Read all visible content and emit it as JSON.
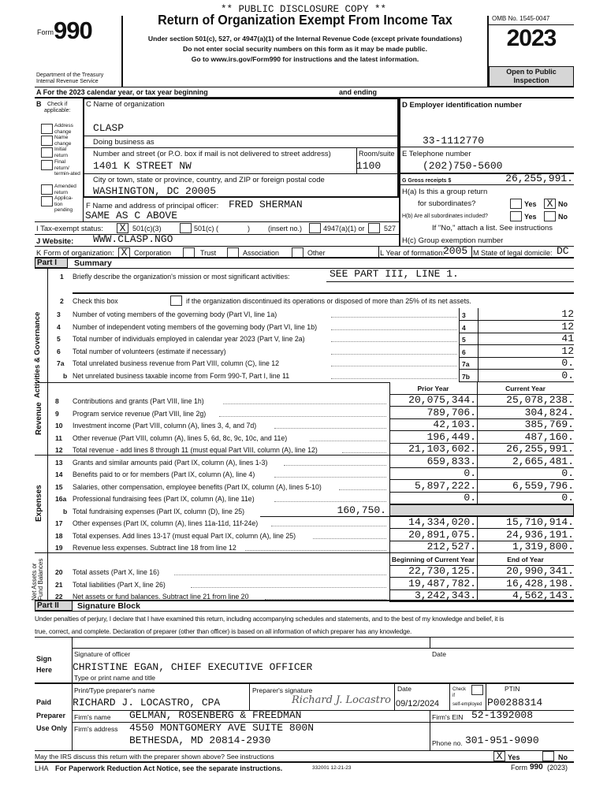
{
  "header": {
    "disclosure": "** PUBLIC DISCLOSURE COPY **",
    "form_word": "Form",
    "form_number": "990",
    "dept_line1": "Department of the Treasury",
    "dept_line2": "Internal Revenue Service",
    "title": "Return of Organization Exempt From Income Tax",
    "sub1": "Under section 501(c), 527, or 4947(a)(1) of the Internal Revenue Code (except private foundations)",
    "sub2": "Do not enter social security numbers on this form as it may be made public.",
    "sub3": "Go to www.irs.gov/Form990 for instructions and the latest information.",
    "omb": "OMB No. 1545-0047",
    "year": "2023",
    "open_public": "Open to Public",
    "inspection": "Inspection",
    "line_a": "A  For the 2023 calendar year, or tax year beginning",
    "and_ending": "and ending"
  },
  "section_b": {
    "label_b": "B",
    "check_if": "Check if",
    "applicable": "applicable:",
    "items": [
      {
        "l1": "Address",
        "l2": "change",
        "checked": ""
      },
      {
        "l1": "Name",
        "l2": "change",
        "checked": ""
      },
      {
        "l1": "Initial",
        "l2": "return",
        "checked": ""
      },
      {
        "l1": "Final",
        "l2": "return/ termin-ated",
        "checked": ""
      },
      {
        "l1": "Amended",
        "l2": "return",
        "checked": ""
      },
      {
        "l1": "Applica-",
        "l2": "tion pending",
        "checked": ""
      }
    ]
  },
  "section_c": {
    "name_label": "C Name of organization",
    "name": "CLASP",
    "dba_label": "Doing business as",
    "street_label": "Number and street (or P.O. box if mail is not delivered to street address)",
    "street": "1401 K STREET NW",
    "room_label": "Room/suite",
    "room": "1100",
    "city_label": "City or town, state or province, country, and ZIP or foreign postal code",
    "city": "WASHINGTON, DC  20005"
  },
  "section_d": {
    "ein_label": "D Employer identification number",
    "ein": "33-1112770",
    "phone_label": "E  Telephone number",
    "phone": "(202)750-5600",
    "gross_label": "G  Gross receipts $",
    "gross": "26,255,991.",
    "ha_label1": "H(a) Is this a group return",
    "ha_label2": "for subordinates?",
    "yes": "Yes",
    "no": "No",
    "ha_no_checked": "X",
    "hb_label": "H(b) Are all subordinates included?",
    "hb_note": "If \"No,\" attach a list. See instructions",
    "hc_label": "H(c) Group exemption number"
  },
  "section_f": {
    "label": "F Name and address of principal officer:",
    "officer": "FRED  SHERMAN",
    "address": "SAME AS C ABOVE"
  },
  "section_i": {
    "label": "I   Tax-exempt status:",
    "c3_checked": "X",
    "c3": "501(c)(3)",
    "c": "501(c) (",
    "paren": ")",
    "insert": "(insert no.)",
    "a1": "4947(a)(1) or",
    "s527": "527"
  },
  "section_j": {
    "label": "J  Website:",
    "website": "WWW.CLASP.NGO"
  },
  "section_k": {
    "label": "K  Form of organization:",
    "corp_checked": "X",
    "corp": "Corporation",
    "trust": "Trust",
    "assoc": "Association",
    "other": "Other",
    "l_label": "L Year of formation:",
    "year_formed": "2005",
    "m_label": "M State of legal domicile:",
    "domicile": "DC"
  },
  "part1": {
    "part": "Part I",
    "title": "Summary",
    "side_activities": "Activities & Governance",
    "side_revenue": "Revenue",
    "side_expenses": "Expenses",
    "side_net": "Net Assets or Fund Balances",
    "line1_num": "1",
    "line1_label": "Briefly describe the organization's mission or most significant activities:",
    "line1_value": "SEE PART III, LINE 1.",
    "line2_num": "2",
    "line2_a": "Check this box",
    "line2_b": "if the organization discontinued its operations or disposed of more than 25% of its net assets.",
    "col_prior": "Prior Year",
    "col_current": "Current Year",
    "col_begin": "Beginning of Current Year",
    "col_end": "End of Year",
    "gov_lines": [
      {
        "num": "3",
        "label": "Number of voting members of the governing body (Part VI, line 1a)",
        "box": "3",
        "value": "12"
      },
      {
        "num": "4",
        "label": "Number of independent voting members of the governing body (Part VI, line 1b)",
        "box": "4",
        "value": "12"
      },
      {
        "num": "5",
        "label": "Total number of individuals employed in calendar year 2023 (Part V, line 2a)",
        "box": "5",
        "value": "41"
      },
      {
        "num": "6",
        "label": "Total number of volunteers (estimate if necessary)",
        "box": "6",
        "value": "12"
      },
      {
        "num": "7a",
        "label": "Total unrelated business revenue from Part VIII, column (C), line 12",
        "box": "7a",
        "value": "0."
      },
      {
        "num": "b",
        "label": "Net unrelated business taxable income from Form 990-T, Part I, line 11",
        "box": "7b",
        "value": "0."
      }
    ],
    "fin_lines": [
      {
        "num": "8",
        "label": "Contributions and grants (Part VIII, line 1h)",
        "prior": "20,075,344.",
        "current": "25,078,238."
      },
      {
        "num": "9",
        "label": "Program service revenue (Part VIII, line 2g)",
        "prior": "789,706.",
        "current": "304,824."
      },
      {
        "num": "10",
        "label": "Investment income (Part VIII, column (A), lines 3, 4, and 7d)",
        "prior": "42,103.",
        "current": "385,769."
      },
      {
        "num": "11",
        "label": "Other revenue (Part VIII, column (A), lines 5, 6d, 8c, 9c, 10c, and 11e)",
        "prior": "196,449.",
        "current": "487,160."
      },
      {
        "num": "12",
        "label": "Total revenue - add lines 8 through 11 (must equal Part VIII, column (A), line 12)",
        "prior": "21,103,602.",
        "current": "26,255,991."
      },
      {
        "num": "13",
        "label": "Grants and similar amounts paid (Part IX, column (A), lines 1-3)",
        "prior": "659,833.",
        "current": "2,665,481."
      },
      {
        "num": "14",
        "label": "Benefits paid to or for members (Part IX, column (A), line 4)",
        "prior": "0.",
        "current": "0."
      },
      {
        "num": "15",
        "label": "Salaries, other compensation, employee benefits (Part IX, column (A), lines 5-10)",
        "prior": "5,897,222.",
        "current": "6,559,796."
      },
      {
        "num": "16a",
        "label": "Professional fundraising fees (Part IX, column (A), line 11e)",
        "prior": "0.",
        "current": "0."
      },
      {
        "num": "b",
        "label": "Total fundraising expenses (Part IX, column (D), line 25)",
        "inline": "160,750.",
        "shaded": true
      },
      {
        "num": "17",
        "label": "Other expenses (Part IX, column (A), lines 11a-11d, 11f-24e)",
        "prior": "14,334,020.",
        "current": "15,710,914."
      },
      {
        "num": "18",
        "label": "Total expenses. Add lines 13-17 (must equal Part IX, column (A), line 25)",
        "prior": "20,891,075.",
        "current": "24,936,191."
      },
      {
        "num": "19",
        "label": "Revenue less expenses. Subtract line 18 from line 12",
        "prior": "212,527.",
        "current": "1,319,800."
      },
      {
        "header": true
      },
      {
        "num": "20",
        "label": "Total assets (Part X, line 16)",
        "prior": "22,730,125.",
        "current": "20,990,341."
      },
      {
        "num": "21",
        "label": "Total liabilities (Part X, line 26)",
        "prior": "19,487,782.",
        "current": "16,428,198."
      },
      {
        "num": "22",
        "label": "Net assets or fund balances. Subtract line 21 from line 20",
        "prior": "3,242,343.",
        "current": "4,562,143."
      }
    ]
  },
  "part2": {
    "part": "Part II",
    "title": "Signature Block",
    "penalty1": "Under penalties of perjury, I declare that I have examined this return, including accompanying schedules and statements, and to the best of my knowledge and belief, it is",
    "penalty2": "true, correct, and complete. Declaration of preparer (other than officer) is based on all information of which preparer has any knowledge.",
    "sign": "Sign",
    "here": "Here",
    "sig_label": "Signature of officer",
    "date_label": "Date",
    "officer_name": "CHRISTINE EGAN,  CHIEF EXECUTIVE OFFICER",
    "type_label": "Type or print name and title",
    "paid": "Paid",
    "preparer": "Preparer",
    "use_only": "Use Only",
    "prep_name_label": "Print/Type preparer's name",
    "prep_name": "RICHARD J. LOCASTRO, CPA",
    "prep_sig_label": "Preparer's signature",
    "prep_sig": "Richard J. Locastro",
    "prep_date_label": "Date",
    "prep_date": "09/12/2024",
    "check_label": "Check",
    "if_label": "if",
    "self_emp": "self-employed",
    "ptin_label": "PTIN",
    "ptin": "P00288314",
    "firm_name_label": "Firm's name",
    "firm_name": "GELMAN, ROSENBERG & FREEDMAN",
    "firm_ein_label": "Firm's EIN",
    "firm_ein": "52-1392008",
    "firm_addr_label": "Firm's address",
    "firm_addr1": "4550 MONTGOMERY AVE SUITE 800N",
    "firm_addr2": "BETHESDA, MD 20814-2930",
    "phone_label": "Phone no.",
    "phone": "301-951-9090",
    "discuss": "May the IRS discuss this return with the preparer shown above? See instructions",
    "discuss_yes_checked": "X",
    "yes": "Yes",
    "no": "No"
  },
  "footer": {
    "lha": "LHA",
    "notice": "For Paperwork Reduction Act Notice, see the separate instructions.",
    "code": "332001  12-21-23",
    "form_word": "Form",
    "form_num": "990",
    "form_year": "(2023)"
  }
}
